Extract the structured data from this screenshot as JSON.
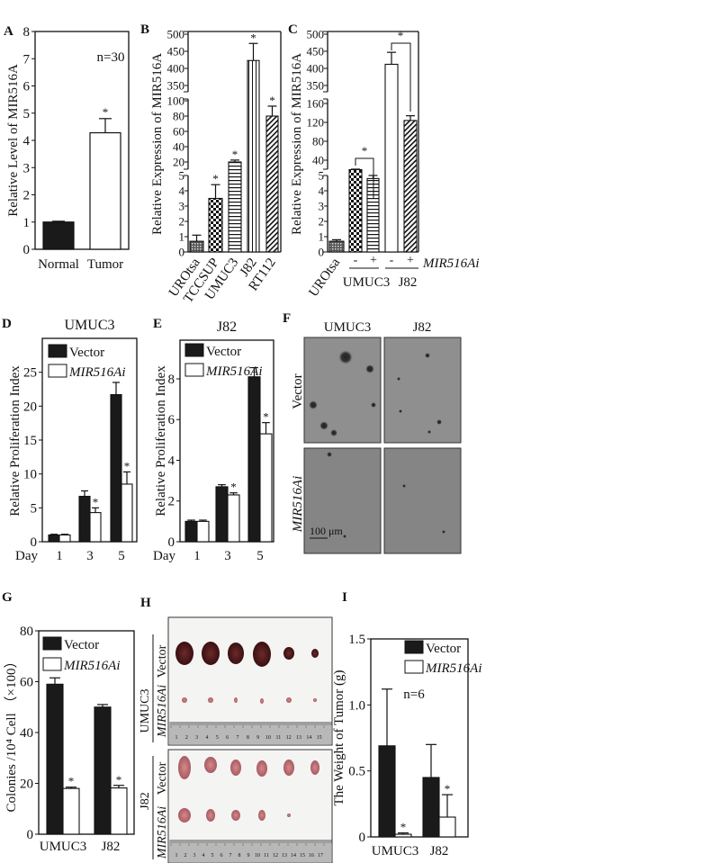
{
  "colors": {
    "vector": "#1a1a1a",
    "mirna": "#ffffff",
    "axis": "#111111",
    "photo_bg": "#8a8a8a",
    "tumor_dark": "#4a1518",
    "tumor_light": "#b8646a"
  },
  "chart_data": [
    {
      "panel": "A",
      "type": "bar",
      "ylabel": "Relative Level of MIR516A",
      "categories": [
        "Normal",
        "Tumor"
      ],
      "values": [
        1.0,
        4.28
      ],
      "errors": [
        0.03,
        0.52
      ],
      "fills": [
        "solid-black",
        "white"
      ],
      "ylim": [
        0,
        8
      ],
      "yticks": [
        0,
        1,
        2,
        3,
        4,
        5,
        6,
        7,
        8
      ],
      "significance": [
        "",
        "*"
      ],
      "annotation": "n=30"
    },
    {
      "panel": "B",
      "type": "bar",
      "ylabel": "Relative Expression of MIR516A",
      "axis_break": true,
      "categories": [
        "UROtsa",
        "TCCSUP",
        "UMUC3",
        "J82",
        "RT112"
      ],
      "values": [
        0.7,
        3.5,
        20,
        423,
        80
      ],
      "errors": [
        0.4,
        0.9,
        2.5,
        50,
        13
      ],
      "fills": [
        "small-check",
        "checker",
        "horizontal-lines",
        "vertical-lines",
        "diagonal-lines"
      ],
      "yticks": [
        0,
        1,
        2,
        3,
        4,
        5,
        20,
        40,
        60,
        80,
        100,
        350,
        400,
        450,
        500
      ],
      "significance": [
        "",
        "*",
        "*",
        "*",
        "*"
      ]
    },
    {
      "panel": "C",
      "type": "bar",
      "ylabel": "Relative Expression of MIR516A",
      "axis_break": true,
      "categories": [
        "UROtsa",
        "UMUC3 -",
        "UMUC3 +",
        "J82 -",
        "J82 +"
      ],
      "tick_labels": [
        "UROtsa",
        "-",
        "+",
        "-",
        "+"
      ],
      "group_labels": [
        "UMUC3",
        "J82"
      ],
      "treatment_label": "MIR516Ai",
      "values": [
        0.7,
        20,
        4.8,
        412,
        124
      ],
      "errors": [
        0.1,
        1,
        0.2,
        35,
        10
      ],
      "fills": [
        "small-check",
        "checker",
        "horizontal-lines",
        "white",
        "diagonal-lines"
      ],
      "yticks": [
        0,
        1,
        2,
        3,
        4,
        5,
        40,
        80,
        120,
        160,
        350,
        400,
        450,
        500
      ],
      "comparisons": [
        "*",
        "*"
      ]
    },
    {
      "panel": "D",
      "type": "bar",
      "title": "UMUC3",
      "ylabel": "Relative  Proliferation Index",
      "xlabel": "Day",
      "categories": [
        "1",
        "3",
        "5"
      ],
      "ylim": [
        0,
        30
      ],
      "yticks": [
        0,
        5,
        10,
        15,
        20,
        25
      ],
      "series": [
        {
          "name": "Vector",
          "values": [
            1.0,
            6.7,
            21.7
          ],
          "errors": [
            0.1,
            0.8,
            1.8
          ]
        },
        {
          "name": "MIR516Ai",
          "values": [
            1.0,
            4.3,
            8.5
          ],
          "errors": [
            0.1,
            0.7,
            1.8
          ],
          "significance": [
            "",
            "*",
            "*"
          ]
        }
      ],
      "legend": "top-left"
    },
    {
      "panel": "E",
      "type": "bar",
      "title": "J82",
      "ylabel": "Relative  Proliferation Index",
      "xlabel": "Day",
      "categories": [
        "1",
        "3",
        "5"
      ],
      "ylim": [
        0,
        9.9
      ],
      "yticks": [
        0,
        2,
        4,
        6,
        8
      ],
      "series": [
        {
          "name": "Vector",
          "values": [
            1.0,
            2.7,
            8.1
          ],
          "errors": [
            0.06,
            0.1,
            0.45
          ]
        },
        {
          "name": "MIR516Ai",
          "values": [
            1.0,
            2.3,
            5.3
          ],
          "errors": [
            0.06,
            0.1,
            0.55
          ],
          "significance": [
            "",
            "*",
            "*"
          ]
        }
      ],
      "legend": "top-left"
    },
    {
      "panel": "G",
      "type": "bar",
      "ylabel": "Colonies /10⁴ Cell （×100）",
      "categories": [
        "UMUC3",
        "J82"
      ],
      "ylim": [
        0,
        80
      ],
      "yticks": [
        0,
        20,
        40,
        60,
        80
      ],
      "series": [
        {
          "name": "Vector",
          "values": [
            59,
            50
          ],
          "errors": [
            2.5,
            1
          ]
        },
        {
          "name": "MIR516Ai",
          "values": [
            18,
            18.2
          ],
          "errors": [
            0.5,
            1
          ],
          "significance": [
            "*",
            "*"
          ]
        }
      ],
      "legend": "top-left"
    },
    {
      "panel": "I",
      "type": "bar",
      "ylabel": "The Weight of Tumor (g)",
      "categories": [
        "UMUC3",
        "J82"
      ],
      "ylim": [
        0,
        1.5
      ],
      "yticks": [
        "0",
        "0.5",
        "1.0",
        "1.5"
      ],
      "series": [
        {
          "name": "Vector",
          "values": [
            0.69,
            0.45
          ],
          "errors": [
            0.43,
            0.25
          ]
        },
        {
          "name": "MIR516Ai",
          "values": [
            0.02,
            0.15
          ],
          "errors": [
            0.01,
            0.17
          ],
          "significance": [
            "*",
            "*"
          ]
        }
      ],
      "legend": "top-right",
      "annotation": "n=6"
    }
  ],
  "panel_f": {
    "letter": "F",
    "columns": [
      "UMUC3",
      "J82"
    ],
    "rows": [
      "Vector",
      "MIR516Ai"
    ],
    "scale_bar": "100 μm"
  },
  "panel_h": {
    "letter": "H",
    "groups": [
      "UMUC3",
      "J82"
    ],
    "rows": [
      "Vector",
      "MIR516Ai"
    ],
    "ruler_1": [
      "1",
      "2",
      "3",
      "4",
      "5",
      "6",
      "7",
      "8",
      "9",
      "10",
      "11",
      "12",
      "13",
      "14",
      "15"
    ],
    "ruler_2": [
      "1",
      "2",
      "3",
      "4",
      "5",
      "6",
      "7",
      "8",
      "9",
      "10",
      "11",
      "12",
      "13",
      "14",
      "15",
      "16",
      "17"
    ]
  }
}
